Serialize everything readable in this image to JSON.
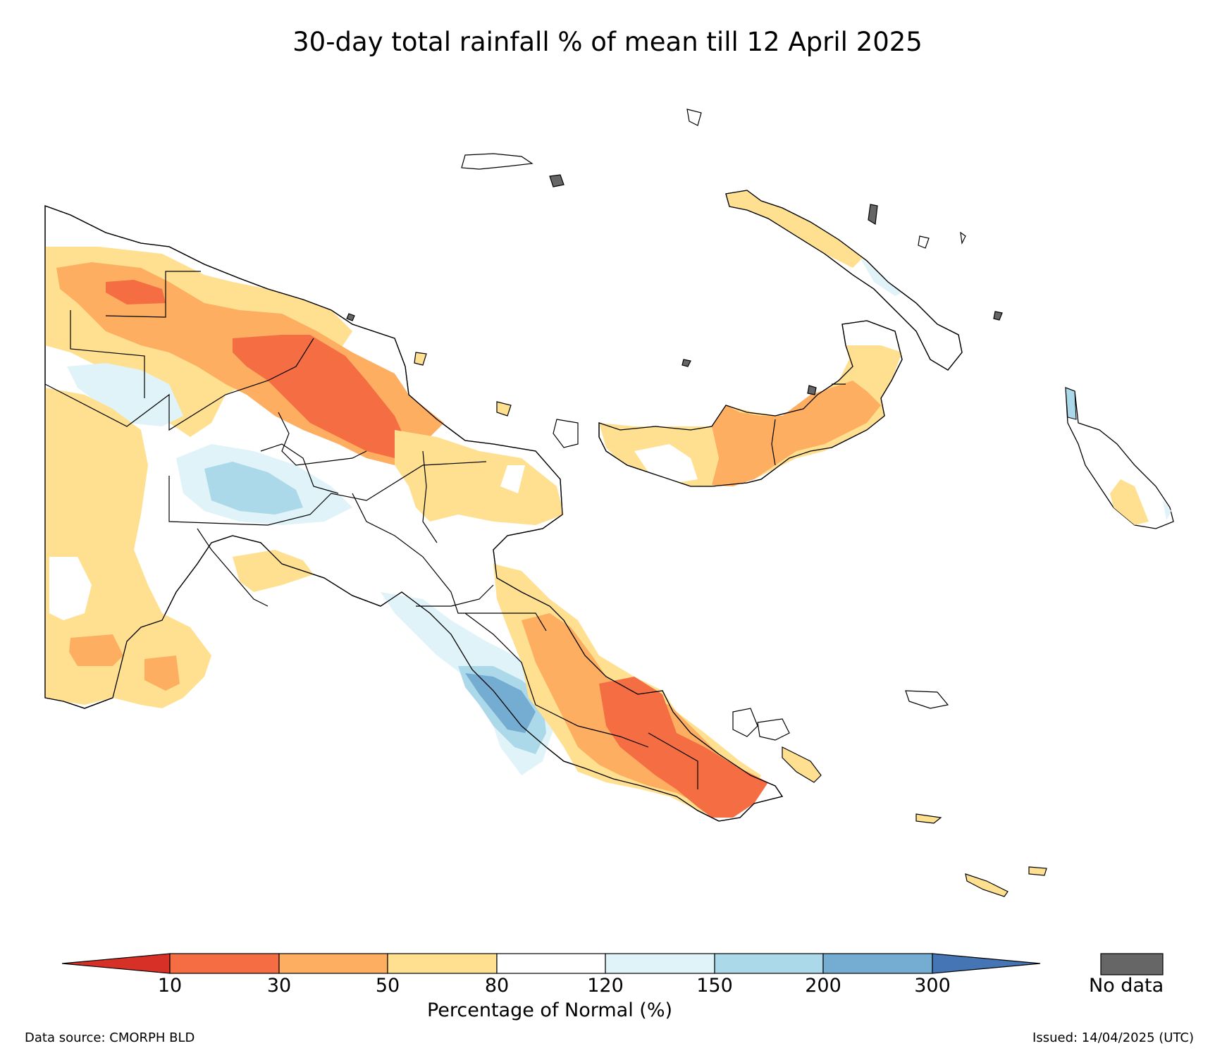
{
  "title": "30-day total rainfall % of mean till 12 April 2025",
  "colorbar": {
    "ticks": [
      "10",
      "30",
      "50",
      "80",
      "120",
      "150",
      "200",
      "300"
    ],
    "label": "Percentage of Normal (%)",
    "colors": {
      "below_10": "#d73027",
      "10_30": "#f46d43",
      "30_50": "#fdae61",
      "50_80": "#fee090",
      "80_120": "#ffffff",
      "120_150": "#e0f3f8",
      "150_200": "#abd9e9",
      "200_300": "#74add1",
      "above_300": "#4575b4"
    }
  },
  "no_data": {
    "label": "No data",
    "color": "#666666"
  },
  "footer": {
    "source": "Data source: CMORPH BLD",
    "issued": "Issued: 14/04/2025 (UTC)"
  }
}
